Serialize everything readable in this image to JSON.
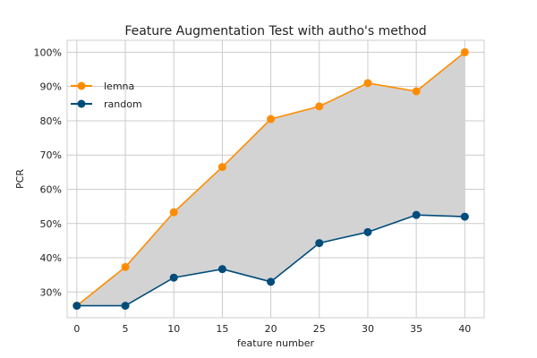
{
  "chart_data": {
    "type": "line",
    "title": "Feature Augmentation Test with autho's method",
    "xlabel": "feature number",
    "ylabel": "PCR",
    "x": [
      0,
      5,
      10,
      15,
      20,
      25,
      30,
      35,
      40
    ],
    "xlim": [
      -1,
      42
    ],
    "ylim": [
      22.5,
      103.5
    ],
    "xticks": [
      0,
      5,
      10,
      15,
      20,
      25,
      30,
      35,
      40
    ],
    "yticks": [
      30,
      40,
      50,
      60,
      70,
      80,
      90,
      100
    ],
    "ytick_labels": [
      "30%",
      "40%",
      "50%",
      "60%",
      "70%",
      "80%",
      "90%",
      "100%"
    ],
    "grid": true,
    "legend_position": "upper-left",
    "fill_between": {
      "color": "#d3d3d3"
    },
    "series": [
      {
        "name": "lemna",
        "color": "#ff8c00",
        "values": [
          26,
          37.3,
          53.3,
          66.5,
          80.5,
          84.2,
          91,
          88.6,
          100
        ]
      },
      {
        "name": "random",
        "color": "#004c7a",
        "values": [
          26,
          26,
          34.2,
          36.7,
          33,
          44.3,
          47.5,
          52.5,
          52
        ]
      }
    ]
  }
}
